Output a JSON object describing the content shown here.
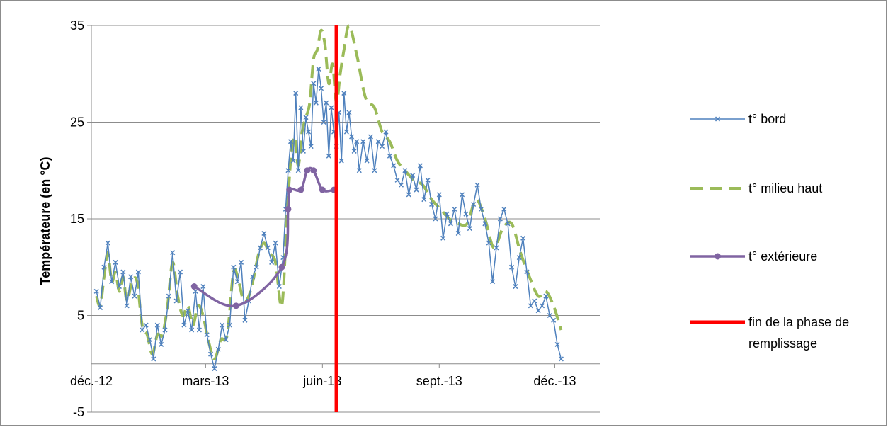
{
  "chart_data": {
    "type": "line",
    "title": "",
    "xlabel": "",
    "ylabel": "Températeure (en °C)",
    "ylim": [
      -5,
      35
    ],
    "yticks": [
      35,
      25,
      15,
      5,
      -5
    ],
    "xlim": [
      "2012-12-01",
      "2014-01-06"
    ],
    "xticks": [
      {
        "date": "2012-12-01",
        "label": "déc.-12"
      },
      {
        "date": "2013-03-01",
        "label": "mars-13"
      },
      {
        "date": "2013-06-01",
        "label": "juin-13"
      },
      {
        "date": "2013-09-01",
        "label": "sept.-13"
      },
      {
        "date": "2013-12-01",
        "label": "déc.-13"
      }
    ],
    "grid": true,
    "legend_position": "right",
    "series": [
      {
        "name": "t° bord",
        "color": "#4f81bd",
        "style": "line-with-x-markers",
        "points": [
          [
            "2012-12-05",
            7.5
          ],
          [
            "2012-12-08",
            5.8
          ],
          [
            "2012-12-11",
            10
          ],
          [
            "2012-12-14",
            12.5
          ],
          [
            "2012-12-17",
            8.5
          ],
          [
            "2012-12-20",
            10.5
          ],
          [
            "2012-12-23",
            8
          ],
          [
            "2012-12-26",
            9.5
          ],
          [
            "2012-12-29",
            6
          ],
          [
            "2013-01-01",
            9
          ],
          [
            "2013-01-04",
            7
          ],
          [
            "2013-01-07",
            9.5
          ],
          [
            "2013-01-10",
            3.5
          ],
          [
            "2013-01-13",
            4
          ],
          [
            "2013-01-16",
            2.5
          ],
          [
            "2013-01-19",
            0.5
          ],
          [
            "2013-01-22",
            4
          ],
          [
            "2013-01-25",
            2
          ],
          [
            "2013-01-28",
            3.5
          ],
          [
            "2013-01-31",
            7
          ],
          [
            "2013-02-03",
            11.5
          ],
          [
            "2013-02-06",
            6.5
          ],
          [
            "2013-02-09",
            9.5
          ],
          [
            "2013-02-12",
            4
          ],
          [
            "2013-02-15",
            5.5
          ],
          [
            "2013-02-18",
            3.5
          ],
          [
            "2013-02-21",
            7.5
          ],
          [
            "2013-02-24",
            3.5
          ],
          [
            "2013-02-27",
            8
          ],
          [
            "2013-03-02",
            3
          ],
          [
            "2013-03-05",
            1
          ],
          [
            "2013-03-08",
            -0.5
          ],
          [
            "2013-03-11",
            1.5
          ],
          [
            "2013-03-14",
            4
          ],
          [
            "2013-03-17",
            2.5
          ],
          [
            "2013-03-20",
            4
          ],
          [
            "2013-03-23",
            10
          ],
          [
            "2013-03-26",
            8.5
          ],
          [
            "2013-03-29",
            10.5
          ],
          [
            "2013-04-01",
            4.5
          ],
          [
            "2013-04-04",
            6.5
          ],
          [
            "2013-04-07",
            9
          ],
          [
            "2013-04-10",
            10
          ],
          [
            "2013-04-13",
            12
          ],
          [
            "2013-04-16",
            13.5
          ],
          [
            "2013-04-19",
            12
          ],
          [
            "2013-04-22",
            10.5
          ],
          [
            "2013-04-25",
            12.5
          ],
          [
            "2013-04-28",
            8
          ],
          [
            "2013-05-01",
            11
          ],
          [
            "2013-05-03",
            16
          ],
          [
            "2013-05-05",
            20
          ],
          [
            "2013-05-07",
            23
          ],
          [
            "2013-05-09",
            21
          ],
          [
            "2013-05-11",
            28
          ],
          [
            "2013-05-13",
            20
          ],
          [
            "2013-05-15",
            26.5
          ],
          [
            "2013-05-17",
            22
          ],
          [
            "2013-05-19",
            25.5
          ],
          [
            "2013-05-21",
            24
          ],
          [
            "2013-05-23",
            22.5
          ],
          [
            "2013-05-25",
            29
          ],
          [
            "2013-05-27",
            27
          ],
          [
            "2013-05-29",
            30.5
          ],
          [
            "2013-05-31",
            28.5
          ],
          [
            "2013-06-02",
            25
          ],
          [
            "2013-06-04",
            27
          ],
          [
            "2013-06-06",
            21.5
          ],
          [
            "2013-06-08",
            26.5
          ],
          [
            "2013-06-10",
            24
          ],
          [
            "2013-06-12",
            22.5
          ],
          [
            "2013-06-14",
            26
          ],
          [
            "2013-06-16",
            21
          ],
          [
            "2013-06-18",
            28
          ],
          [
            "2013-06-20",
            24
          ],
          [
            "2013-06-22",
            26
          ],
          [
            "2013-06-24",
            23.5
          ],
          [
            "2013-06-26",
            22
          ],
          [
            "2013-06-28",
            23
          ],
          [
            "2013-06-30",
            20
          ],
          [
            "2013-07-03",
            23
          ],
          [
            "2013-07-06",
            21
          ],
          [
            "2013-07-09",
            23.5
          ],
          [
            "2013-07-12",
            20
          ],
          [
            "2013-07-15",
            23
          ],
          [
            "2013-07-18",
            22.5
          ],
          [
            "2013-07-21",
            24
          ],
          [
            "2013-07-24",
            21.5
          ],
          [
            "2013-07-27",
            20.5
          ],
          [
            "2013-07-30",
            19
          ],
          [
            "2013-08-02",
            18.5
          ],
          [
            "2013-08-05",
            20
          ],
          [
            "2013-08-08",
            17.5
          ],
          [
            "2013-08-11",
            19.5
          ],
          [
            "2013-08-14",
            18
          ],
          [
            "2013-08-17",
            20.5
          ],
          [
            "2013-08-20",
            17
          ],
          [
            "2013-08-23",
            19
          ],
          [
            "2013-08-26",
            16.5
          ],
          [
            "2013-08-29",
            15
          ],
          [
            "2013-09-01",
            17.5
          ],
          [
            "2013-09-04",
            13
          ],
          [
            "2013-09-07",
            15.5
          ],
          [
            "2013-09-10",
            14.5
          ],
          [
            "2013-09-13",
            16
          ],
          [
            "2013-09-16",
            13.5
          ],
          [
            "2013-09-19",
            17.5
          ],
          [
            "2013-09-22",
            15.5
          ],
          [
            "2013-09-25",
            14
          ],
          [
            "2013-09-28",
            16.5
          ],
          [
            "2013-10-01",
            18.5
          ],
          [
            "2013-10-04",
            16
          ],
          [
            "2013-10-07",
            14.5
          ],
          [
            "2013-10-10",
            12.5
          ],
          [
            "2013-10-13",
            8.5
          ],
          [
            "2013-10-16",
            12
          ],
          [
            "2013-10-19",
            15
          ],
          [
            "2013-10-22",
            16
          ],
          [
            "2013-10-25",
            14.5
          ],
          [
            "2013-10-28",
            10
          ],
          [
            "2013-10-31",
            8
          ],
          [
            "2013-11-03",
            11
          ],
          [
            "2013-11-06",
            13
          ],
          [
            "2013-11-09",
            9.5
          ],
          [
            "2013-11-12",
            6
          ],
          [
            "2013-11-15",
            6.5
          ],
          [
            "2013-11-18",
            5.5
          ],
          [
            "2013-11-21",
            6
          ],
          [
            "2013-11-24",
            7
          ],
          [
            "2013-11-27",
            5
          ],
          [
            "2013-11-30",
            4.5
          ],
          [
            "2013-12-03",
            2
          ],
          [
            "2013-12-06",
            0.5
          ]
        ]
      },
      {
        "name": "t° milieu haut",
        "color": "#9bbb59",
        "style": "dashed",
        "points": [
          [
            "2012-12-05",
            7
          ],
          [
            "2012-12-08",
            6
          ],
          [
            "2012-12-11",
            9
          ],
          [
            "2012-12-14",
            11.5
          ],
          [
            "2012-12-17",
            8.5
          ],
          [
            "2012-12-20",
            9.5
          ],
          [
            "2012-12-23",
            7.5
          ],
          [
            "2012-12-26",
            9
          ],
          [
            "2012-12-29",
            6.5
          ],
          [
            "2013-01-02",
            8.5
          ],
          [
            "2013-01-06",
            8.5
          ],
          [
            "2013-01-10",
            4
          ],
          [
            "2013-01-14",
            3
          ],
          [
            "2013-01-18",
            1
          ],
          [
            "2013-01-22",
            3
          ],
          [
            "2013-01-26",
            3
          ],
          [
            "2013-01-30",
            6
          ],
          [
            "2013-02-03",
            10.5
          ],
          [
            "2013-02-07",
            7
          ],
          [
            "2013-02-11",
            5
          ],
          [
            "2013-02-15",
            6
          ],
          [
            "2013-02-19",
            4
          ],
          [
            "2013-02-23",
            6
          ],
          [
            "2013-02-27",
            5
          ],
          [
            "2013-03-03",
            2.5
          ],
          [
            "2013-03-08",
            0.5
          ],
          [
            "2013-03-13",
            2.5
          ],
          [
            "2013-03-18",
            3
          ],
          [
            "2013-03-23",
            9.5
          ],
          [
            "2013-03-27",
            8.5
          ],
          [
            "2013-03-31",
            6.5
          ],
          [
            "2013-04-04",
            7
          ],
          [
            "2013-04-08",
            9
          ],
          [
            "2013-04-12",
            11.5
          ],
          [
            "2013-04-16",
            12.5
          ],
          [
            "2013-04-20",
            11.5
          ],
          [
            "2013-04-25",
            10.5
          ],
          [
            "2013-04-30",
            6
          ],
          [
            "2013-05-04",
            15
          ],
          [
            "2013-05-07",
            21
          ],
          [
            "2013-05-10",
            23.5
          ],
          [
            "2013-05-13",
            20.5
          ],
          [
            "2013-05-16",
            24
          ],
          [
            "2013-05-19",
            25.5
          ],
          [
            "2013-05-22",
            27
          ],
          [
            "2013-05-25",
            31.5
          ],
          [
            "2013-05-28",
            32.5
          ],
          [
            "2013-05-31",
            34.5
          ],
          [
            "2013-06-03",
            33
          ],
          [
            "2013-06-06",
            29
          ],
          [
            "2013-06-09",
            31
          ],
          [
            "2013-06-12",
            27
          ],
          [
            "2013-06-15",
            30
          ],
          [
            "2013-06-18",
            32.5
          ],
          [
            "2013-06-22",
            35
          ],
          [
            "2013-06-28",
            32
          ],
          [
            "2013-07-05",
            27.5
          ],
          [
            "2013-07-12",
            26.5
          ],
          [
            "2013-07-18",
            24
          ],
          [
            "2013-07-24",
            23
          ],
          [
            "2013-07-30",
            21
          ],
          [
            "2013-08-05",
            20
          ],
          [
            "2013-08-12",
            19
          ],
          [
            "2013-08-19",
            18.5
          ],
          [
            "2013-08-26",
            17
          ],
          [
            "2013-09-02",
            16
          ],
          [
            "2013-09-09",
            15
          ],
          [
            "2013-09-16",
            14.5
          ],
          [
            "2013-09-23",
            14.5
          ],
          [
            "2013-09-30",
            17
          ],
          [
            "2013-10-07",
            15
          ],
          [
            "2013-10-14",
            12
          ],
          [
            "2013-10-21",
            14
          ],
          [
            "2013-10-28",
            14.5
          ],
          [
            "2013-11-04",
            11.5
          ],
          [
            "2013-11-11",
            9
          ],
          [
            "2013-11-18",
            7
          ],
          [
            "2013-11-24",
            7.5
          ],
          [
            "2013-11-30",
            6
          ],
          [
            "2013-12-06",
            3.5
          ]
        ]
      },
      {
        "name": "t° extérieure",
        "color": "#8064a2",
        "style": "smooth-line-with-dot-markers",
        "points": [
          [
            "2013-02-20",
            8
          ],
          [
            "2013-03-25",
            6
          ],
          [
            "2013-04-30",
            10
          ],
          [
            "2013-05-05",
            16
          ],
          [
            "2013-05-06",
            18
          ],
          [
            "2013-05-15",
            18
          ],
          [
            "2013-05-20",
            20
          ],
          [
            "2013-05-25",
            20
          ],
          [
            "2013-06-01",
            18
          ],
          [
            "2013-06-10",
            18
          ]
        ]
      },
      {
        "name": "fin de la phase de remplissage",
        "color": "#ff0000",
        "style": "vertical-line",
        "date": "2013-06-12"
      }
    ]
  }
}
